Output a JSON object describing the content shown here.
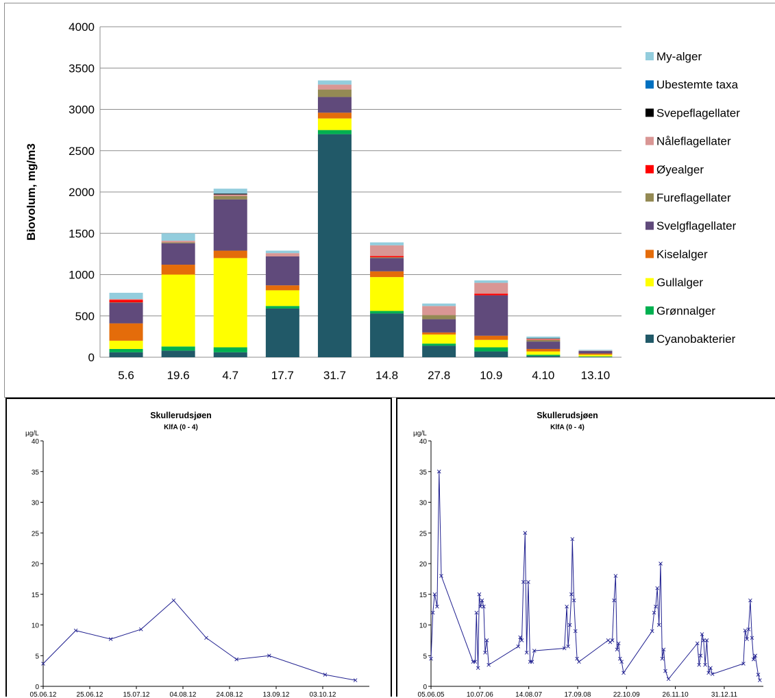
{
  "chart_data": [
    {
      "type": "bar",
      "stacked": true,
      "title": "",
      "xlabel": "",
      "ylabel": "Biovolum, mg/m3",
      "ylim": [
        0,
        4000
      ],
      "yticks": [
        0,
        500,
        1000,
        1500,
        2000,
        2500,
        3000,
        3500,
        4000
      ],
      "legend_position": "right",
      "grid": true,
      "categories": [
        "5.6",
        "19.6",
        "4.7",
        "17.7",
        "31.7",
        "14.8",
        "27.8",
        "10.9",
        "4.10",
        "13.10"
      ],
      "series": [
        {
          "name": "Cyanobakterier",
          "color": "#215968",
          "values": [
            60,
            80,
            60,
            590,
            2700,
            530,
            140,
            70,
            15,
            5
          ]
        },
        {
          "name": "Grønnalger",
          "color": "#00b050",
          "values": [
            40,
            50,
            60,
            30,
            50,
            30,
            25,
            50,
            15,
            5
          ]
        },
        {
          "name": "Gullalger",
          "color": "#ffff00",
          "values": [
            100,
            870,
            1080,
            190,
            140,
            410,
            110,
            90,
            40,
            20
          ]
        },
        {
          "name": "Kiselalger",
          "color": "#e46c0a",
          "values": [
            210,
            120,
            90,
            60,
            70,
            70,
            25,
            50,
            30,
            15
          ]
        },
        {
          "name": "Svelgflagellater",
          "color": "#604a7b",
          "values": [
            250,
            260,
            620,
            350,
            190,
            160,
            160,
            490,
            90,
            30
          ]
        },
        {
          "name": "Fureflagellater",
          "color": "#948a54",
          "values": [
            5,
            10,
            40,
            0,
            90,
            10,
            50,
            0,
            20,
            0
          ]
        },
        {
          "name": "Øyealger",
          "color": "#ff0000",
          "values": [
            30,
            0,
            0,
            0,
            0,
            15,
            0,
            20,
            5,
            0
          ]
        },
        {
          "name": "Nåleflagellater",
          "color": "#d99694",
          "values": [
            10,
            20,
            20,
            40,
            60,
            130,
            110,
            130,
            10,
            5
          ]
        },
        {
          "name": "Svepeflagellater",
          "color": "#000000",
          "values": [
            0,
            0,
            10,
            0,
            0,
            0,
            0,
            0,
            5,
            0
          ]
        },
        {
          "name": "Ubestemte taxa",
          "color": "#0070c0",
          "values": [
            0,
            0,
            0,
            0,
            0,
            0,
            0,
            0,
            0,
            0
          ]
        },
        {
          "name": "My-alger",
          "color": "#93cddd",
          "values": [
            75,
            90,
            60,
            30,
            50,
            35,
            30,
            30,
            20,
            10
          ]
        }
      ]
    },
    {
      "type": "line",
      "title": "Skullerudsjøen",
      "subtitle": "KlfA (0 - 4)",
      "ylabel": "µg/L",
      "ylim": [
        0,
        40
      ],
      "yticks": [
        0,
        5,
        10,
        15,
        20,
        25,
        30,
        35,
        40
      ],
      "xlim": [
        "2012-06-05",
        "2012-10-23"
      ],
      "xticks": [
        "2012-06-05",
        "2012-06-25",
        "2012-07-15",
        "2012-08-04",
        "2012-08-24",
        "2012-09-13",
        "2012-10-03"
      ],
      "xtick_labels": [
        "05.06.12",
        "25.06.12",
        "15.07.12",
        "04.08.12",
        "24.08.12",
        "13.09.12",
        "03.10.12"
      ],
      "color": "#1f1f8f",
      "points": [
        {
          "x": "2012-06-05",
          "y": 3.7
        },
        {
          "x": "2012-06-19",
          "y": 9.1
        },
        {
          "x": "2012-07-04",
          "y": 7.7
        },
        {
          "x": "2012-07-17",
          "y": 9.3
        },
        {
          "x": "2012-07-31",
          "y": 14.0
        },
        {
          "x": "2012-08-14",
          "y": 7.9
        },
        {
          "x": "2012-08-27",
          "y": 4.4
        },
        {
          "x": "2012-09-10",
          "y": 5.0
        },
        {
          "x": "2012-10-04",
          "y": 1.9
        },
        {
          "x": "2012-10-17",
          "y": 1.0
        }
      ]
    },
    {
      "type": "line",
      "title": "Skullerudsjøen",
      "subtitle": "KlfA (0 - 4)",
      "ylabel": "µg/L",
      "ylim": [
        0,
        40
      ],
      "yticks": [
        0,
        5,
        10,
        15,
        20,
        25,
        30,
        35,
        40
      ],
      "xlim": [
        "2005-06-05",
        "2012-11-15"
      ],
      "xticks": [
        "2005-06-05",
        "2006-07-10",
        "2007-08-14",
        "2008-09-17",
        "2009-10-22",
        "2010-11-26",
        "2011-12-31"
      ],
      "xtick_labels": [
        "05.06.05",
        "10.07.06",
        "14.08.07",
        "17.09.08",
        "22.10.09",
        "26.11.10",
        "31.12.11"
      ],
      "color": "#1f1f8f",
      "points": [
        {
          "x": "2005-06-05",
          "y": 4.5
        },
        {
          "x": "2005-06-20",
          "y": 12.0
        },
        {
          "x": "2005-07-05",
          "y": 15.0
        },
        {
          "x": "2005-07-25",
          "y": 13.0
        },
        {
          "x": "2005-08-10",
          "y": 35.0
        },
        {
          "x": "2005-08-28",
          "y": 18.0
        },
        {
          "x": "2006-05-15",
          "y": 4.0
        },
        {
          "x": "2006-06-01",
          "y": 4.0
        },
        {
          "x": "2006-06-12",
          "y": 12.0
        },
        {
          "x": "2006-06-25",
          "y": 3.0
        },
        {
          "x": "2006-07-05",
          "y": 15.0
        },
        {
          "x": "2006-07-15",
          "y": 13.0
        },
        {
          "x": "2006-07-28",
          "y": 14.0
        },
        {
          "x": "2006-08-10",
          "y": 13.0
        },
        {
          "x": "2006-08-22",
          "y": 5.5
        },
        {
          "x": "2006-09-05",
          "y": 7.5
        },
        {
          "x": "2006-09-20",
          "y": 3.5
        },
        {
          "x": "2007-05-20",
          "y": 6.5
        },
        {
          "x": "2007-06-05",
          "y": 8.0
        },
        {
          "x": "2007-06-18",
          "y": 7.5
        },
        {
          "x": "2007-07-01",
          "y": 17.0
        },
        {
          "x": "2007-07-15",
          "y": 25.0
        },
        {
          "x": "2007-07-28",
          "y": 5.5
        },
        {
          "x": "2007-08-10",
          "y": 17.0
        },
        {
          "x": "2007-08-25",
          "y": 4.0
        },
        {
          "x": "2007-09-10",
          "y": 4.0
        },
        {
          "x": "2007-09-28",
          "y": 5.8
        },
        {
          "x": "2008-06-01",
          "y": 6.2
        },
        {
          "x": "2008-06-20",
          "y": 13.0
        },
        {
          "x": "2008-07-01",
          "y": 6.5
        },
        {
          "x": "2008-07-15",
          "y": 10.0
        },
        {
          "x": "2008-07-28",
          "y": 15.0
        },
        {
          "x": "2008-08-05",
          "y": 24.0
        },
        {
          "x": "2008-08-18",
          "y": 14.0
        },
        {
          "x": "2008-08-30",
          "y": 9.0
        },
        {
          "x": "2008-09-12",
          "y": 4.5
        },
        {
          "x": "2008-09-28",
          "y": 4.0
        },
        {
          "x": "2009-05-25",
          "y": 7.5
        },
        {
          "x": "2009-06-10",
          "y": 7.2
        },
        {
          "x": "2009-06-28",
          "y": 7.5
        },
        {
          "x": "2009-07-12",
          "y": 14.0
        },
        {
          "x": "2009-07-25",
          "y": 18.0
        },
        {
          "x": "2009-08-05",
          "y": 6.0
        },
        {
          "x": "2009-08-18",
          "y": 7.0
        },
        {
          "x": "2009-08-30",
          "y": 4.5
        },
        {
          "x": "2009-09-12",
          "y": 4.0
        },
        {
          "x": "2009-09-28",
          "y": 2.2
        },
        {
          "x": "2010-05-20",
          "y": 9.0
        },
        {
          "x": "2010-06-05",
          "y": 12.0
        },
        {
          "x": "2010-06-18",
          "y": 13.0
        },
        {
          "x": "2010-07-01",
          "y": 16.0
        },
        {
          "x": "2010-07-15",
          "y": 10.0
        },
        {
          "x": "2010-07-28",
          "y": 20.0
        },
        {
          "x": "2010-08-10",
          "y": 4.5
        },
        {
          "x": "2010-08-22",
          "y": 6.0
        },
        {
          "x": "2010-09-05",
          "y": 2.5
        },
        {
          "x": "2010-10-01",
          "y": 1.2
        },
        {
          "x": "2011-05-25",
          "y": 7.0
        },
        {
          "x": "2011-06-08",
          "y": 3.5
        },
        {
          "x": "2011-06-20",
          "y": 5.0
        },
        {
          "x": "2011-07-02",
          "y": 8.5
        },
        {
          "x": "2011-07-15",
          "y": 7.5
        },
        {
          "x": "2011-07-28",
          "y": 3.5
        },
        {
          "x": "2011-08-10",
          "y": 7.5
        },
        {
          "x": "2011-08-25",
          "y": 2.2
        },
        {
          "x": "2011-09-10",
          "y": 3.0
        },
        {
          "x": "2011-09-25",
          "y": 2.0
        },
        {
          "x": "2012-06-05",
          "y": 3.7
        },
        {
          "x": "2012-06-19",
          "y": 9.1
        },
        {
          "x": "2012-07-04",
          "y": 7.7
        },
        {
          "x": "2012-07-17",
          "y": 9.3
        },
        {
          "x": "2012-07-31",
          "y": 14.0
        },
        {
          "x": "2012-08-14",
          "y": 7.9
        },
        {
          "x": "2012-08-27",
          "y": 4.4
        },
        {
          "x": "2012-09-10",
          "y": 5.0
        },
        {
          "x": "2012-10-04",
          "y": 1.9
        },
        {
          "x": "2012-10-17",
          "y": 1.0
        }
      ]
    }
  ]
}
